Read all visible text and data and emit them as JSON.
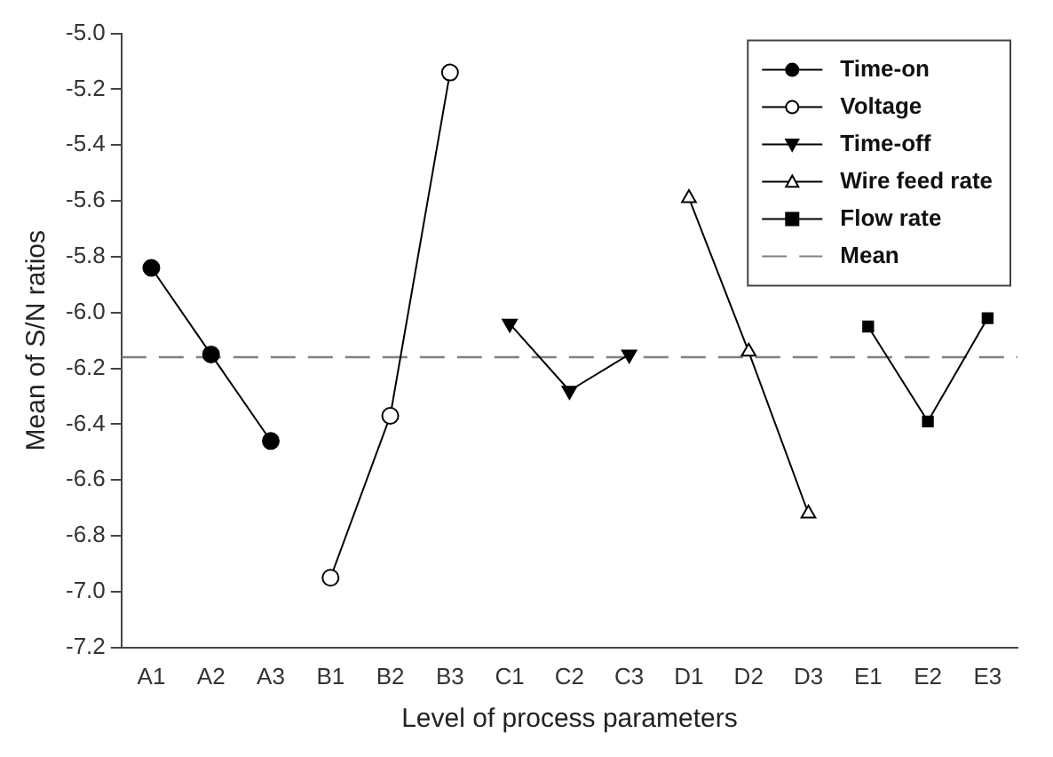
{
  "chart_data": {
    "type": "line",
    "xlabel": "Level of process parameters",
    "ylabel": "Mean of S/N ratios",
    "categories": [
      "A1",
      "A2",
      "A3",
      "B1",
      "B2",
      "B3",
      "C1",
      "C2",
      "C3",
      "D1",
      "D2",
      "D3",
      "E1",
      "E2",
      "E3"
    ],
    "series": [
      {
        "name": "Time-on",
        "color": "#000000",
        "marker": "circle",
        "values": [
          -5.84,
          -6.15,
          -6.46,
          null,
          null,
          null,
          null,
          null,
          null,
          null,
          null,
          null,
          null,
          null,
          null
        ]
      },
      {
        "name": "Voltage",
        "color": "#000000",
        "marker": "circle-open",
        "values": [
          null,
          null,
          null,
          -6.95,
          -6.37,
          -5.14,
          null,
          null,
          null,
          null,
          null,
          null,
          null,
          null,
          null
        ]
      },
      {
        "name": "Time-off",
        "color": "#000000",
        "marker": "triangle-down",
        "values": [
          null,
          null,
          null,
          null,
          null,
          null,
          -6.04,
          -6.28,
          -6.15,
          null,
          null,
          null,
          null,
          null,
          null
        ]
      },
      {
        "name": "Wire feed rate",
        "color": "#000000",
        "marker": "triangle-open",
        "values": [
          null,
          null,
          null,
          null,
          null,
          null,
          null,
          null,
          null,
          -5.59,
          -6.14,
          -6.72,
          null,
          null,
          null
        ]
      },
      {
        "name": "Flow rate",
        "color": "#000000",
        "marker": "square",
        "values": [
          null,
          null,
          null,
          null,
          null,
          null,
          null,
          null,
          null,
          null,
          null,
          null,
          -6.05,
          -6.39,
          -6.02
        ]
      }
    ],
    "ref_lines": [
      {
        "axis": "y",
        "value": -6.16,
        "label": "Mean",
        "color": "#808080",
        "line_style": "dashed"
      }
    ],
    "ylim": [
      -7.2,
      -5.0
    ],
    "yticks": [
      {
        "value": -7.2,
        "label": "-7.2"
      },
      {
        "value": -7.0,
        "label": "-7.0"
      },
      {
        "value": -6.8,
        "label": "-6.8"
      },
      {
        "value": -6.6,
        "label": "-6.6"
      },
      {
        "value": -6.4,
        "label": "-6.4"
      },
      {
        "value": -6.2,
        "label": "-6.2"
      },
      {
        "value": -6.0,
        "label": "-6.0"
      },
      {
        "value": -5.8,
        "label": "-5.8"
      },
      {
        "value": -5.6,
        "label": "-5.6"
      },
      {
        "value": -5.4,
        "label": "-5.4"
      },
      {
        "value": -5.2,
        "label": "-5.2"
      },
      {
        "value": -5.0,
        "label": "-5.0"
      }
    ],
    "grid": false,
    "legend": "top right"
  }
}
